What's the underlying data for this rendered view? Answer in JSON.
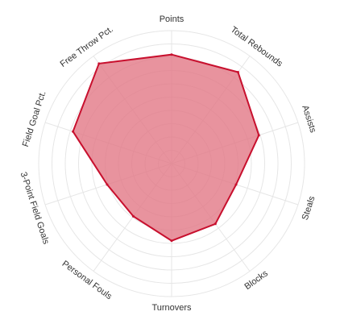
{
  "chart_data": {
    "type": "radar",
    "axes": [
      "Points",
      "Total Rebounds",
      "Assists",
      "Steals",
      "Blocks",
      "Turnovers",
      "Personal Fouls",
      "3-Point Field Goals",
      "Field Goal Pct.",
      "Free Throw Pct."
    ],
    "series": [
      {
        "values": [
          8.2,
          8.5,
          6.9,
          5.1,
          5.6,
          5.8,
          4.9,
          5.1,
          7.8,
          9.3
        ]
      }
    ],
    "rlim": [
      0,
      10
    ],
    "rings": 10,
    "grid": true,
    "legend": "none"
  },
  "colors": {
    "fill": "#e27886",
    "stroke": "#c8102e",
    "grid": "#e6e6e6",
    "text": "#333333"
  }
}
